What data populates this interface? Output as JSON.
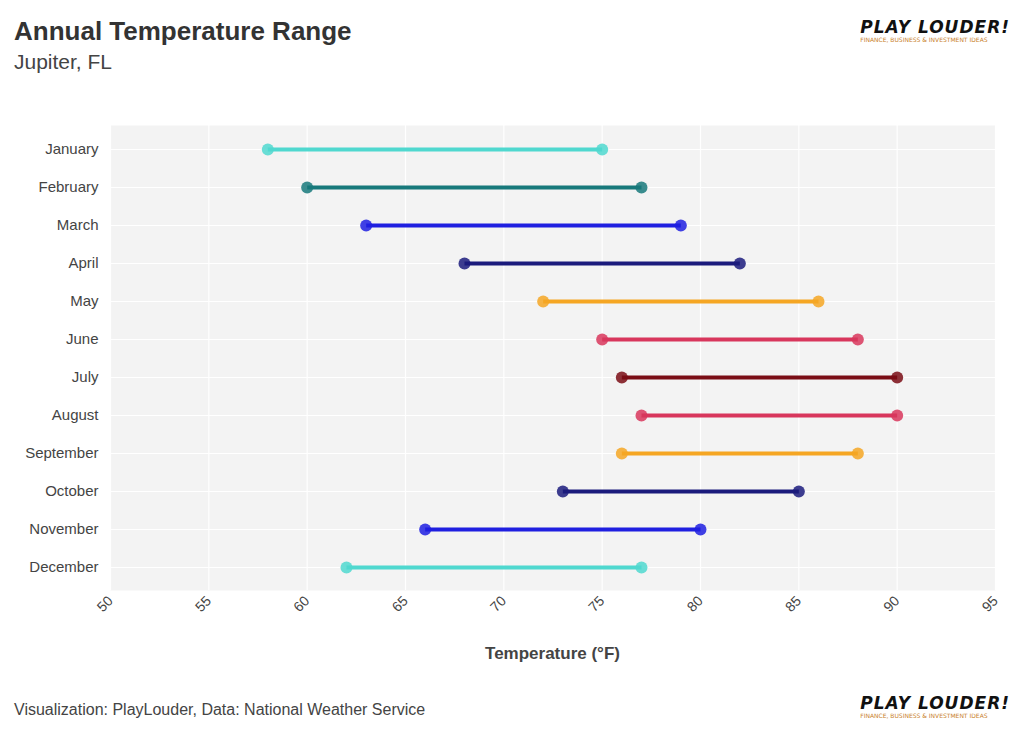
{
  "chart_data": {
    "type": "dumbbell",
    "title": "Annual Temperature Range",
    "subtitle": "Jupiter, FL",
    "x_label": "Temperature (°F)",
    "caption": "Visualization: PlayLouder, Data: National Weather Service",
    "brand": "PLAY LOUDER!",
    "brand_tagline": "FINANCE, BUSINESS & INVESTMENT IDEAS",
    "orientation": "horizontal",
    "categories": [
      "January",
      "February",
      "March",
      "April",
      "May",
      "June",
      "July",
      "August",
      "September",
      "October",
      "November",
      "December"
    ],
    "low": [
      58,
      60,
      63,
      68,
      72,
      75,
      76,
      77,
      76,
      73,
      66,
      62
    ],
    "high": [
      75,
      77,
      79,
      82,
      86,
      88,
      90,
      90,
      88,
      85,
      80,
      77
    ],
    "colors": [
      "#4fd8cf",
      "#17797b",
      "#1f1fe0",
      "#1b1b7c",
      "#f5a623",
      "#d8365c",
      "#7a0d15",
      "#d8365c",
      "#f5a623",
      "#1b1b7c",
      "#1f1fe0",
      "#4fd8cf"
    ],
    "xlim": [
      50,
      95
    ],
    "xticks": [
      50,
      55,
      60,
      65,
      70,
      75,
      80,
      85,
      90,
      95
    ],
    "grid": true
  }
}
